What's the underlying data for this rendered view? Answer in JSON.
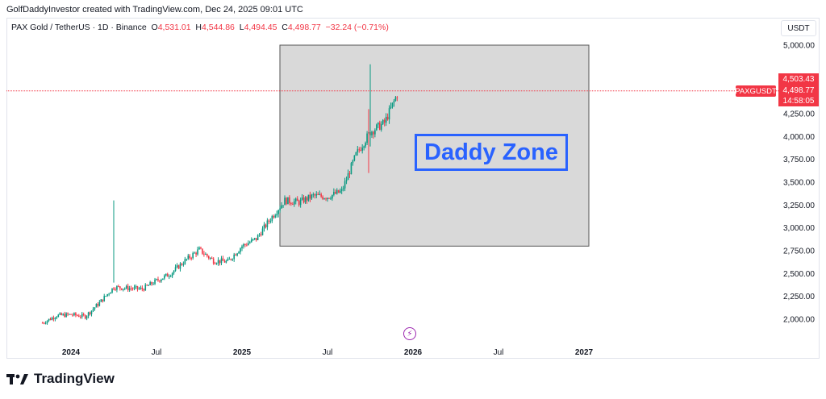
{
  "header": {
    "credit": "GolfDaddyInvestor created with TradingView.com, Dec 24, 2025 09:01 UTC"
  },
  "legend": {
    "symbol": "PAX Gold / TetherUS · 1D · Binance",
    "open_label": "O",
    "open": "4,531.01",
    "high_label": "H",
    "high": "4,544.86",
    "low_label": "L",
    "low": "4,494.45",
    "close_label": "C",
    "close": "4,498.77",
    "change": "−32.24 (−0.71%)"
  },
  "axis": {
    "currency": "USDT",
    "y_ticks": [
      "5,000.00",
      "4,250.00",
      "4,000.00",
      "3,750.00",
      "3,500.00",
      "3,250.00",
      "3,000.00",
      "2,750.00",
      "2,500.00",
      "2,250.00",
      "2,000.00"
    ],
    "x_ticks": [
      "2024",
      "Jul",
      "2025",
      "Jul",
      "2026",
      "Jul",
      "2027"
    ]
  },
  "price_tags": {
    "high_tag": "4,503.43",
    "last_price": "4,498.77",
    "countdown": "14:58:05",
    "symbol_tag": "PAXGUSDT"
  },
  "annotation": {
    "zone_label": "Daddy Zone"
  },
  "branding": {
    "logo_text": "TradingView"
  },
  "colors": {
    "up": "#089981",
    "down": "#f23645",
    "zone_fill": "#d9d9d9",
    "zone_text": "#2962ff",
    "price_line": "#f23645"
  },
  "chart_data": {
    "type": "line",
    "title": "PAX Gold / TetherUS · 1D · Binance",
    "xlabel": "",
    "ylabel": "USDT",
    "ylim": [
      1850,
      5100
    ],
    "x_ticks": [
      "2024",
      "Jul",
      "2025",
      "Jul",
      "2026",
      "Jul",
      "2027"
    ],
    "series": [
      {
        "name": "PAXGUSDT",
        "x": [
          "2023-11",
          "2023-12",
          "2024-01",
          "2024-02",
          "2024-03",
          "2024-04",
          "2024-05",
          "2024-06",
          "2024-07",
          "2024-08",
          "2024-09",
          "2024-10",
          "2024-11",
          "2024-12",
          "2025-01",
          "2025-02",
          "2025-03",
          "2025-04",
          "2025-05",
          "2025-06",
          "2025-07",
          "2025-08",
          "2025-09",
          "2025-10",
          "2025-11",
          "2025-12"
        ],
        "values": [
          1960,
          2040,
          2050,
          2030,
          2180,
          2350,
          2340,
          2330,
          2420,
          2500,
          2640,
          2760,
          2640,
          2630,
          2800,
          2880,
          3100,
          3300,
          3280,
          3350,
          3340,
          3400,
          3800,
          4050,
          4150,
          4498.77
        ]
      }
    ],
    "spikes": [
      {
        "x": "2024-04",
        "high": 3300
      },
      {
        "x": "2025-10",
        "high": 4790,
        "low": 3600
      }
    ],
    "zone": {
      "x_start": "2025-04",
      "x_end": "2026-10",
      "y_low": 2800,
      "y_high": 5000,
      "label": "Daddy Zone"
    },
    "last_price": 4498.77,
    "grid": false
  }
}
